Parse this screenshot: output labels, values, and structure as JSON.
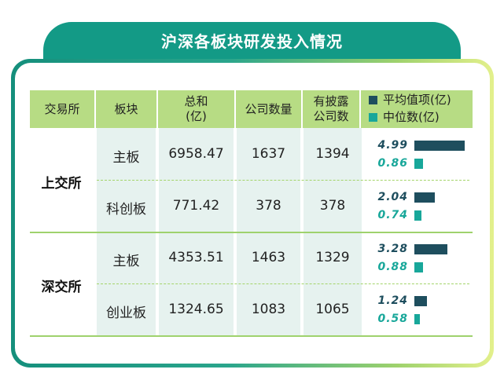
{
  "title": "沪深各板块研发投入情况",
  "colors": {
    "mean": "#1e4e5e",
    "median": "#18a79a",
    "header": "#b7dc84"
  },
  "headers": {
    "exchange": "交易所",
    "board": "板块",
    "total_line1": "总和",
    "total_line2": "(亿)",
    "companies": "公司数量",
    "disclosed_line1": "有披露",
    "disclosed_line2": "公司数"
  },
  "legend": {
    "mean": "平均值项(亿)",
    "median": "中位数(亿)"
  },
  "exchanges": [
    {
      "name": "上交所",
      "boards": [
        {
          "board": "主板",
          "total": "6958.47",
          "companies": "1637",
          "disclosed": "1394",
          "mean": "4.99",
          "median": "0.86"
        },
        {
          "board": "科创板",
          "total": "771.42",
          "companies": "378",
          "disclosed": "378",
          "mean": "2.04",
          "median": "0.74"
        }
      ]
    },
    {
      "name": "深交所",
      "boards": [
        {
          "board": "主板",
          "total": "4353.51",
          "companies": "1463",
          "disclosed": "1329",
          "mean": "3.28",
          "median": "0.88"
        },
        {
          "board": "创业板",
          "total": "1324.65",
          "companies": "1083",
          "disclosed": "1065",
          "mean": "1.24",
          "median": "0.58"
        }
      ]
    }
  ],
  "chart_data": {
    "type": "bar",
    "categories": [
      "上交所 主板",
      "上交所 科创板",
      "深交所 主板",
      "深交所 创业板"
    ],
    "series": [
      {
        "name": "平均值项(亿)",
        "values": [
          4.99,
          2.04,
          3.28,
          1.24
        ]
      },
      {
        "name": "中位数(亿)",
        "values": [
          0.86,
          0.74,
          0.88,
          0.58
        ]
      }
    ],
    "orientation": "horizontal",
    "xlim": [
      0,
      5
    ]
  }
}
